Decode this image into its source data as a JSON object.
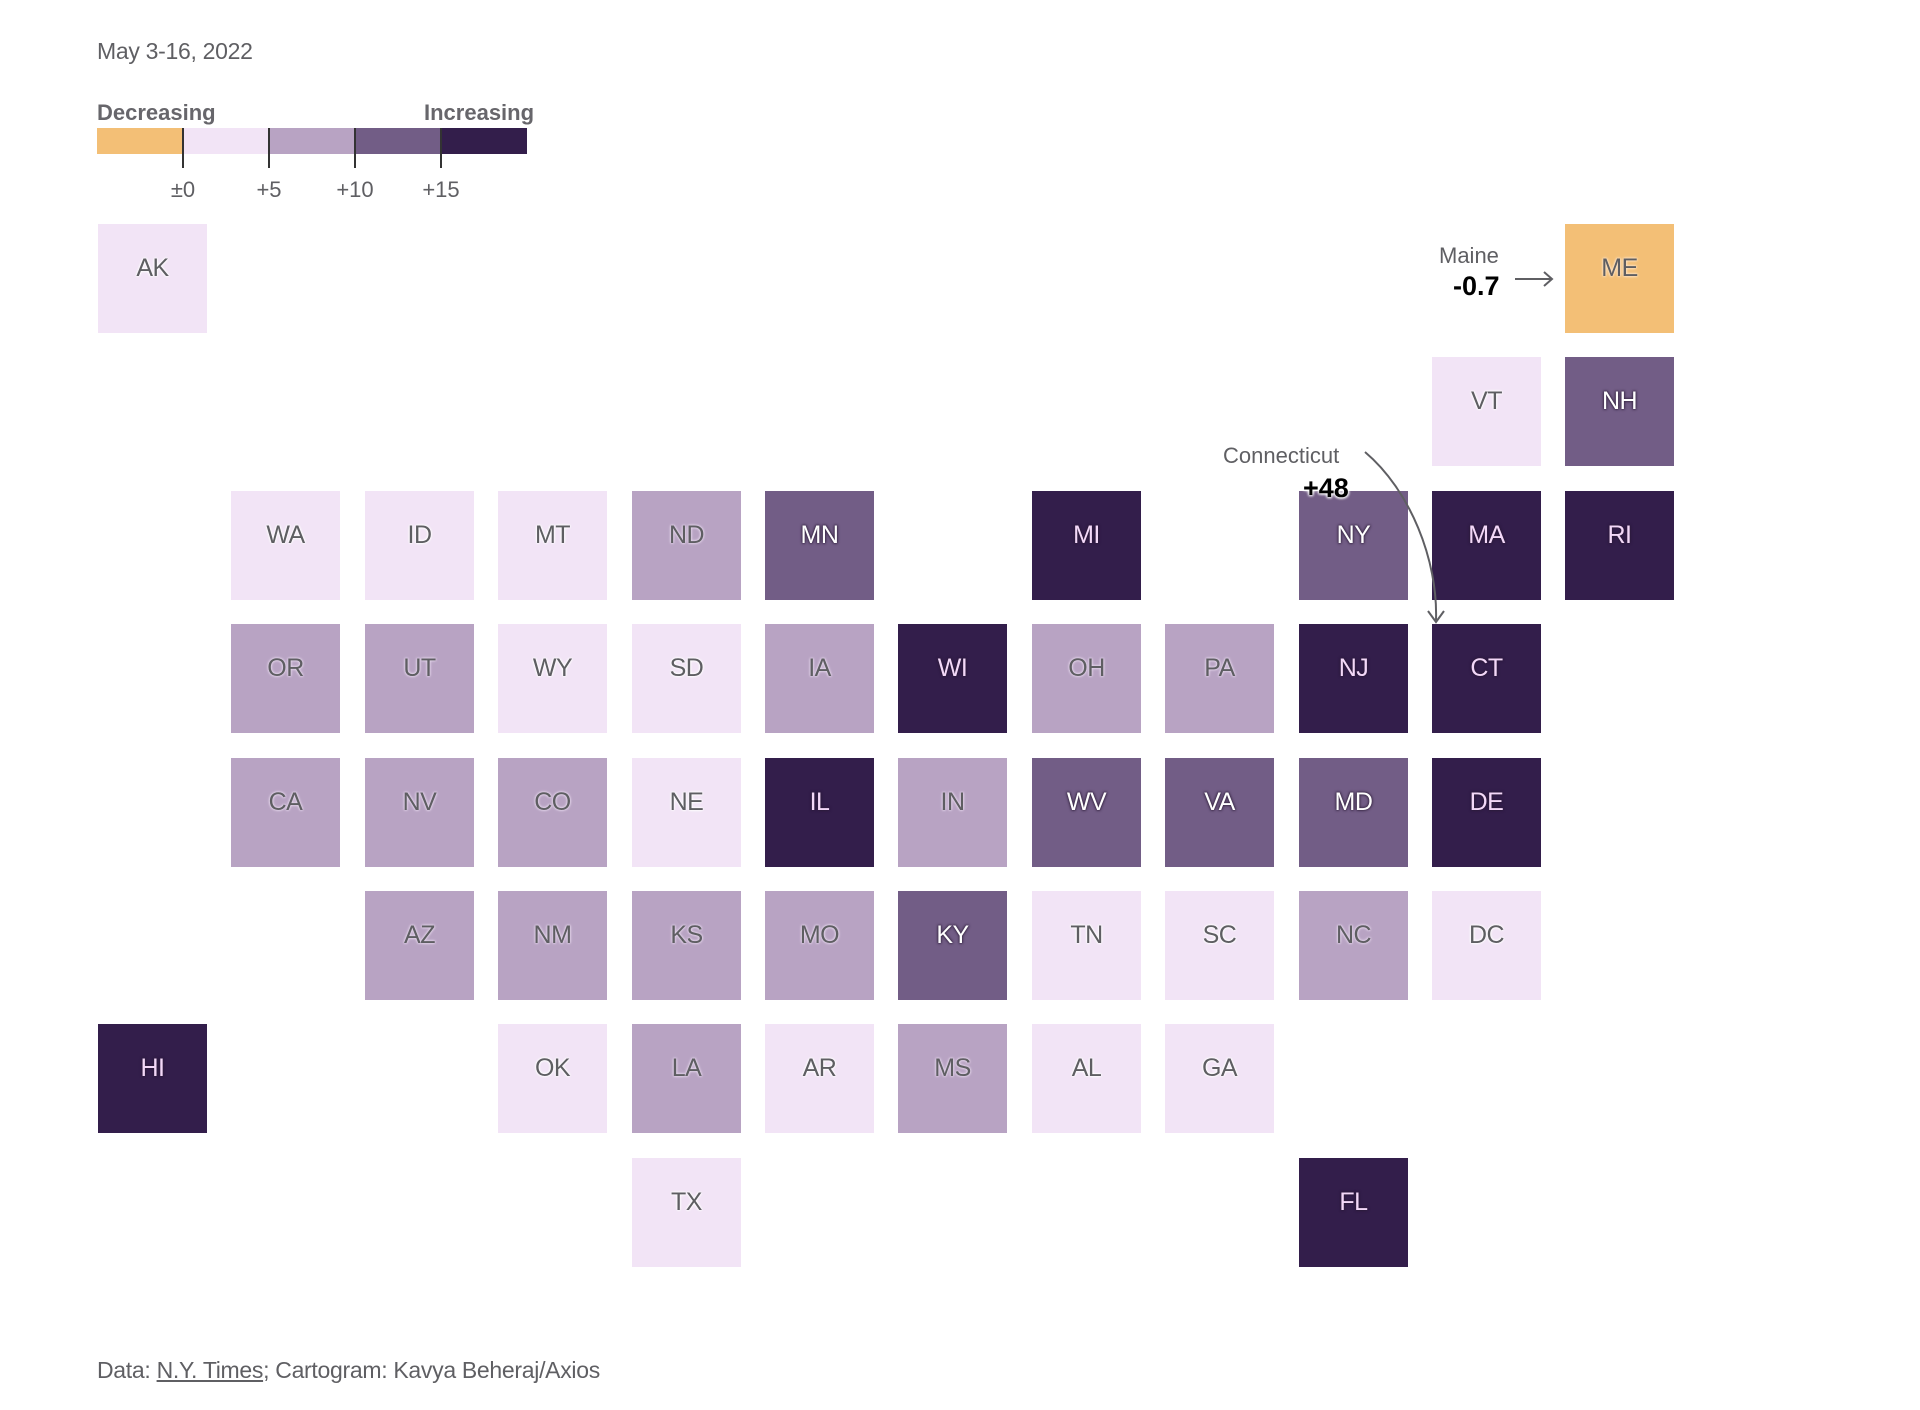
{
  "subtitle": "May 3-16, 2022",
  "legend": {
    "left_label": "Decreasing",
    "right_label": "Increasing",
    "bins": [
      {
        "key": "dec",
        "color": "#f3bf76"
      },
      {
        "key": "b0_5",
        "color": "#f2e4f6"
      },
      {
        "key": "b5_10",
        "color": "#b8a3c3"
      },
      {
        "key": "b10_15",
        "color": "#725d86"
      },
      {
        "key": "b15p",
        "color": "#331e4b"
      }
    ],
    "ticks": [
      "±0",
      "+5",
      "+10",
      "+15"
    ]
  },
  "annotations": {
    "maine": {
      "label": "Maine",
      "value": "-0.7"
    },
    "connecticut": {
      "label": "Connecticut",
      "value": "+48"
    }
  },
  "footer": {
    "prefix": "Data: ",
    "source_link": "N.Y. Times",
    "suffix": "; Cartogram: Kavya Beheraj/Axios"
  },
  "chart_data": {
    "type": "heatmap",
    "subtype": "tile-cartogram",
    "title": "",
    "subtitle": "May 3-16, 2022",
    "legend_placement": "top-left",
    "scale": {
      "categories": [
        "Decreasing (<0)",
        "0 to +5",
        "+5 to +10",
        "+10 to +15",
        "+15 or more"
      ],
      "ticks": [
        0,
        5,
        10,
        15
      ]
    },
    "states": [
      {
        "abbr": "AK",
        "col": 0,
        "row": 0,
        "bin": "b0_5"
      },
      {
        "abbr": "ME",
        "col": 11,
        "row": 0,
        "bin": "dec",
        "value": -0.7
      },
      {
        "abbr": "VT",
        "col": 10,
        "row": 1,
        "bin": "b0_5"
      },
      {
        "abbr": "NH",
        "col": 11,
        "row": 1,
        "bin": "b10_15"
      },
      {
        "abbr": "WA",
        "col": 1,
        "row": 2,
        "bin": "b0_5"
      },
      {
        "abbr": "ID",
        "col": 2,
        "row": 2,
        "bin": "b0_5"
      },
      {
        "abbr": "MT",
        "col": 3,
        "row": 2,
        "bin": "b0_5"
      },
      {
        "abbr": "ND",
        "col": 4,
        "row": 2,
        "bin": "b5_10"
      },
      {
        "abbr": "MN",
        "col": 5,
        "row": 2,
        "bin": "b10_15"
      },
      {
        "abbr": "MI",
        "col": 7,
        "row": 2,
        "bin": "b15p"
      },
      {
        "abbr": "NY",
        "col": 9,
        "row": 2,
        "bin": "b10_15"
      },
      {
        "abbr": "MA",
        "col": 10,
        "row": 2,
        "bin": "b15p"
      },
      {
        "abbr": "RI",
        "col": 11,
        "row": 2,
        "bin": "b15p"
      },
      {
        "abbr": "OR",
        "col": 1,
        "row": 3,
        "bin": "b5_10"
      },
      {
        "abbr": "UT",
        "col": 2,
        "row": 3,
        "bin": "b5_10"
      },
      {
        "abbr": "WY",
        "col": 3,
        "row": 3,
        "bin": "b0_5"
      },
      {
        "abbr": "SD",
        "col": 4,
        "row": 3,
        "bin": "b0_5"
      },
      {
        "abbr": "IA",
        "col": 5,
        "row": 3,
        "bin": "b5_10"
      },
      {
        "abbr": "WI",
        "col": 6,
        "row": 3,
        "bin": "b15p"
      },
      {
        "abbr": "OH",
        "col": 7,
        "row": 3,
        "bin": "b5_10"
      },
      {
        "abbr": "PA",
        "col": 8,
        "row": 3,
        "bin": "b5_10"
      },
      {
        "abbr": "NJ",
        "col": 9,
        "row": 3,
        "bin": "b15p"
      },
      {
        "abbr": "CT",
        "col": 10,
        "row": 3,
        "bin": "b15p",
        "value": 48
      },
      {
        "abbr": "CA",
        "col": 1,
        "row": 4,
        "bin": "b5_10"
      },
      {
        "abbr": "NV",
        "col": 2,
        "row": 4,
        "bin": "b5_10"
      },
      {
        "abbr": "CO",
        "col": 3,
        "row": 4,
        "bin": "b5_10"
      },
      {
        "abbr": "NE",
        "col": 4,
        "row": 4,
        "bin": "b0_5"
      },
      {
        "abbr": "IL",
        "col": 5,
        "row": 4,
        "bin": "b15p"
      },
      {
        "abbr": "IN",
        "col": 6,
        "row": 4,
        "bin": "b5_10"
      },
      {
        "abbr": "WV",
        "col": 7,
        "row": 4,
        "bin": "b10_15"
      },
      {
        "abbr": "VA",
        "col": 8,
        "row": 4,
        "bin": "b10_15"
      },
      {
        "abbr": "MD",
        "col": 9,
        "row": 4,
        "bin": "b10_15"
      },
      {
        "abbr": "DE",
        "col": 10,
        "row": 4,
        "bin": "b15p"
      },
      {
        "abbr": "AZ",
        "col": 2,
        "row": 5,
        "bin": "b5_10"
      },
      {
        "abbr": "NM",
        "col": 3,
        "row": 5,
        "bin": "b5_10"
      },
      {
        "abbr": "KS",
        "col": 4,
        "row": 5,
        "bin": "b5_10"
      },
      {
        "abbr": "MO",
        "col": 5,
        "row": 5,
        "bin": "b5_10"
      },
      {
        "abbr": "KY",
        "col": 6,
        "row": 5,
        "bin": "b10_15"
      },
      {
        "abbr": "TN",
        "col": 7,
        "row": 5,
        "bin": "b0_5"
      },
      {
        "abbr": "SC",
        "col": 8,
        "row": 5,
        "bin": "b0_5"
      },
      {
        "abbr": "NC",
        "col": 9,
        "row": 5,
        "bin": "b5_10"
      },
      {
        "abbr": "DC",
        "col": 10,
        "row": 5,
        "bin": "b0_5"
      },
      {
        "abbr": "HI",
        "col": 0,
        "row": 6,
        "bin": "b15p"
      },
      {
        "abbr": "OK",
        "col": 3,
        "row": 6,
        "bin": "b0_5"
      },
      {
        "abbr": "LA",
        "col": 4,
        "row": 6,
        "bin": "b5_10"
      },
      {
        "abbr": "AR",
        "col": 5,
        "row": 6,
        "bin": "b0_5"
      },
      {
        "abbr": "MS",
        "col": 6,
        "row": 6,
        "bin": "b5_10"
      },
      {
        "abbr": "AL",
        "col": 7,
        "row": 6,
        "bin": "b0_5"
      },
      {
        "abbr": "GA",
        "col": 8,
        "row": 6,
        "bin": "b0_5"
      },
      {
        "abbr": "TX",
        "col": 4,
        "row": 7,
        "bin": "b0_5"
      },
      {
        "abbr": "FL",
        "col": 9,
        "row": 7,
        "bin": "b15p"
      }
    ]
  }
}
